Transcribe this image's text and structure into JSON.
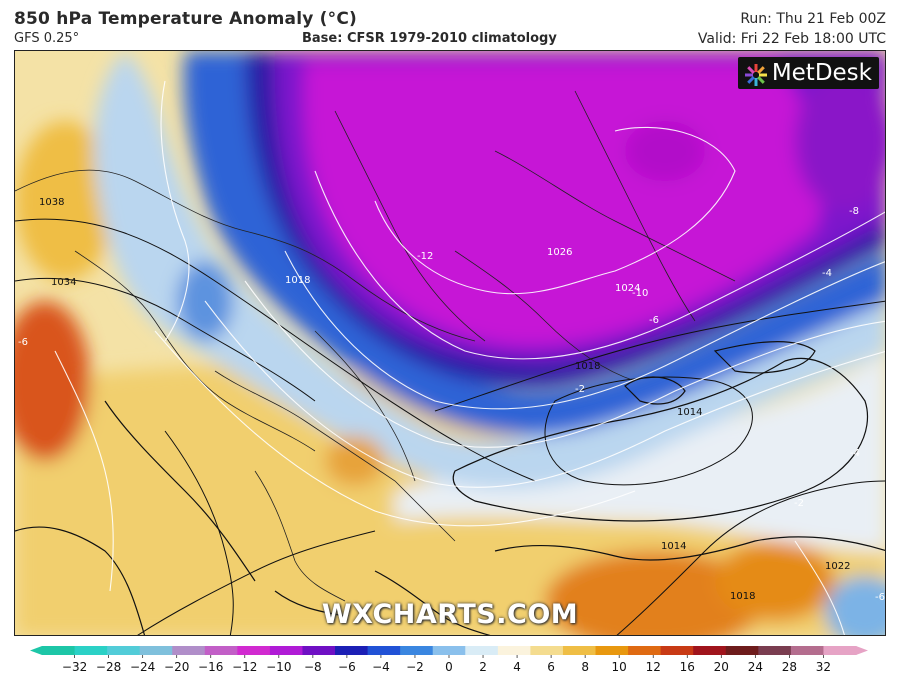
{
  "header": {
    "title": "850 hPa Temperature Anomaly (°C)",
    "model": "GFS 0.25°",
    "base": "Base: CFSR 1979-2010 climatology",
    "run": "Run: Thu 21 Feb 00Z",
    "valid": "Valid: Fri 22 Feb 18:00 UTC"
  },
  "brand": {
    "logo_text": "MetDesk",
    "watermark": "WXCHARTS.COM"
  },
  "legend": {
    "ticks": [
      "−32",
      "−28",
      "−24",
      "−20",
      "−16",
      "−12",
      "−10",
      "−8",
      "−6",
      "−4",
      "−2",
      "0",
      "2",
      "4",
      "6",
      "8",
      "10",
      "12",
      "16",
      "20",
      "24",
      "28",
      "32"
    ],
    "colors": [
      "#1dc6a7",
      "#2bd1c6",
      "#52ccd8",
      "#7fc0dc",
      "#b08ec9",
      "#c25fc7",
      "#d12ad0",
      "#b01bd6",
      "#6f10c4",
      "#1c1fb5",
      "#2152d6",
      "#3a86e0",
      "#8ac0ec",
      "#d9ecf6",
      "#fbf3dd",
      "#f4dc8f",
      "#efbe45",
      "#e8980f",
      "#df6a12",
      "#c83a15",
      "#a0141c",
      "#6e1c1c",
      "#7a3d50",
      "#b46d8e",
      "#e6a3c5"
    ]
  },
  "map": {
    "contour_labels": {
      "temperature": [
        "-12",
        "-10",
        "-8",
        "-6",
        "-4",
        "-2",
        "-2",
        "-6",
        "-6",
        "-4"
      ],
      "pressure": [
        "1038",
        "1034",
        "1026",
        "1024",
        "1018",
        "1018",
        "1014",
        "1014",
        "1018",
        "1022"
      ]
    },
    "colors": {
      "deep_cold": "#c512d7",
      "cold": "#7a12cf",
      "navy": "#1a1c9c",
      "blue": "#2f63d6",
      "light_blue": "#b9d8ef",
      "neutral": "#eef2f6",
      "warm_light": "#f6e3a5",
      "warm": "#efbe45",
      "orange": "#e57a12",
      "red": "#d2431b"
    }
  }
}
